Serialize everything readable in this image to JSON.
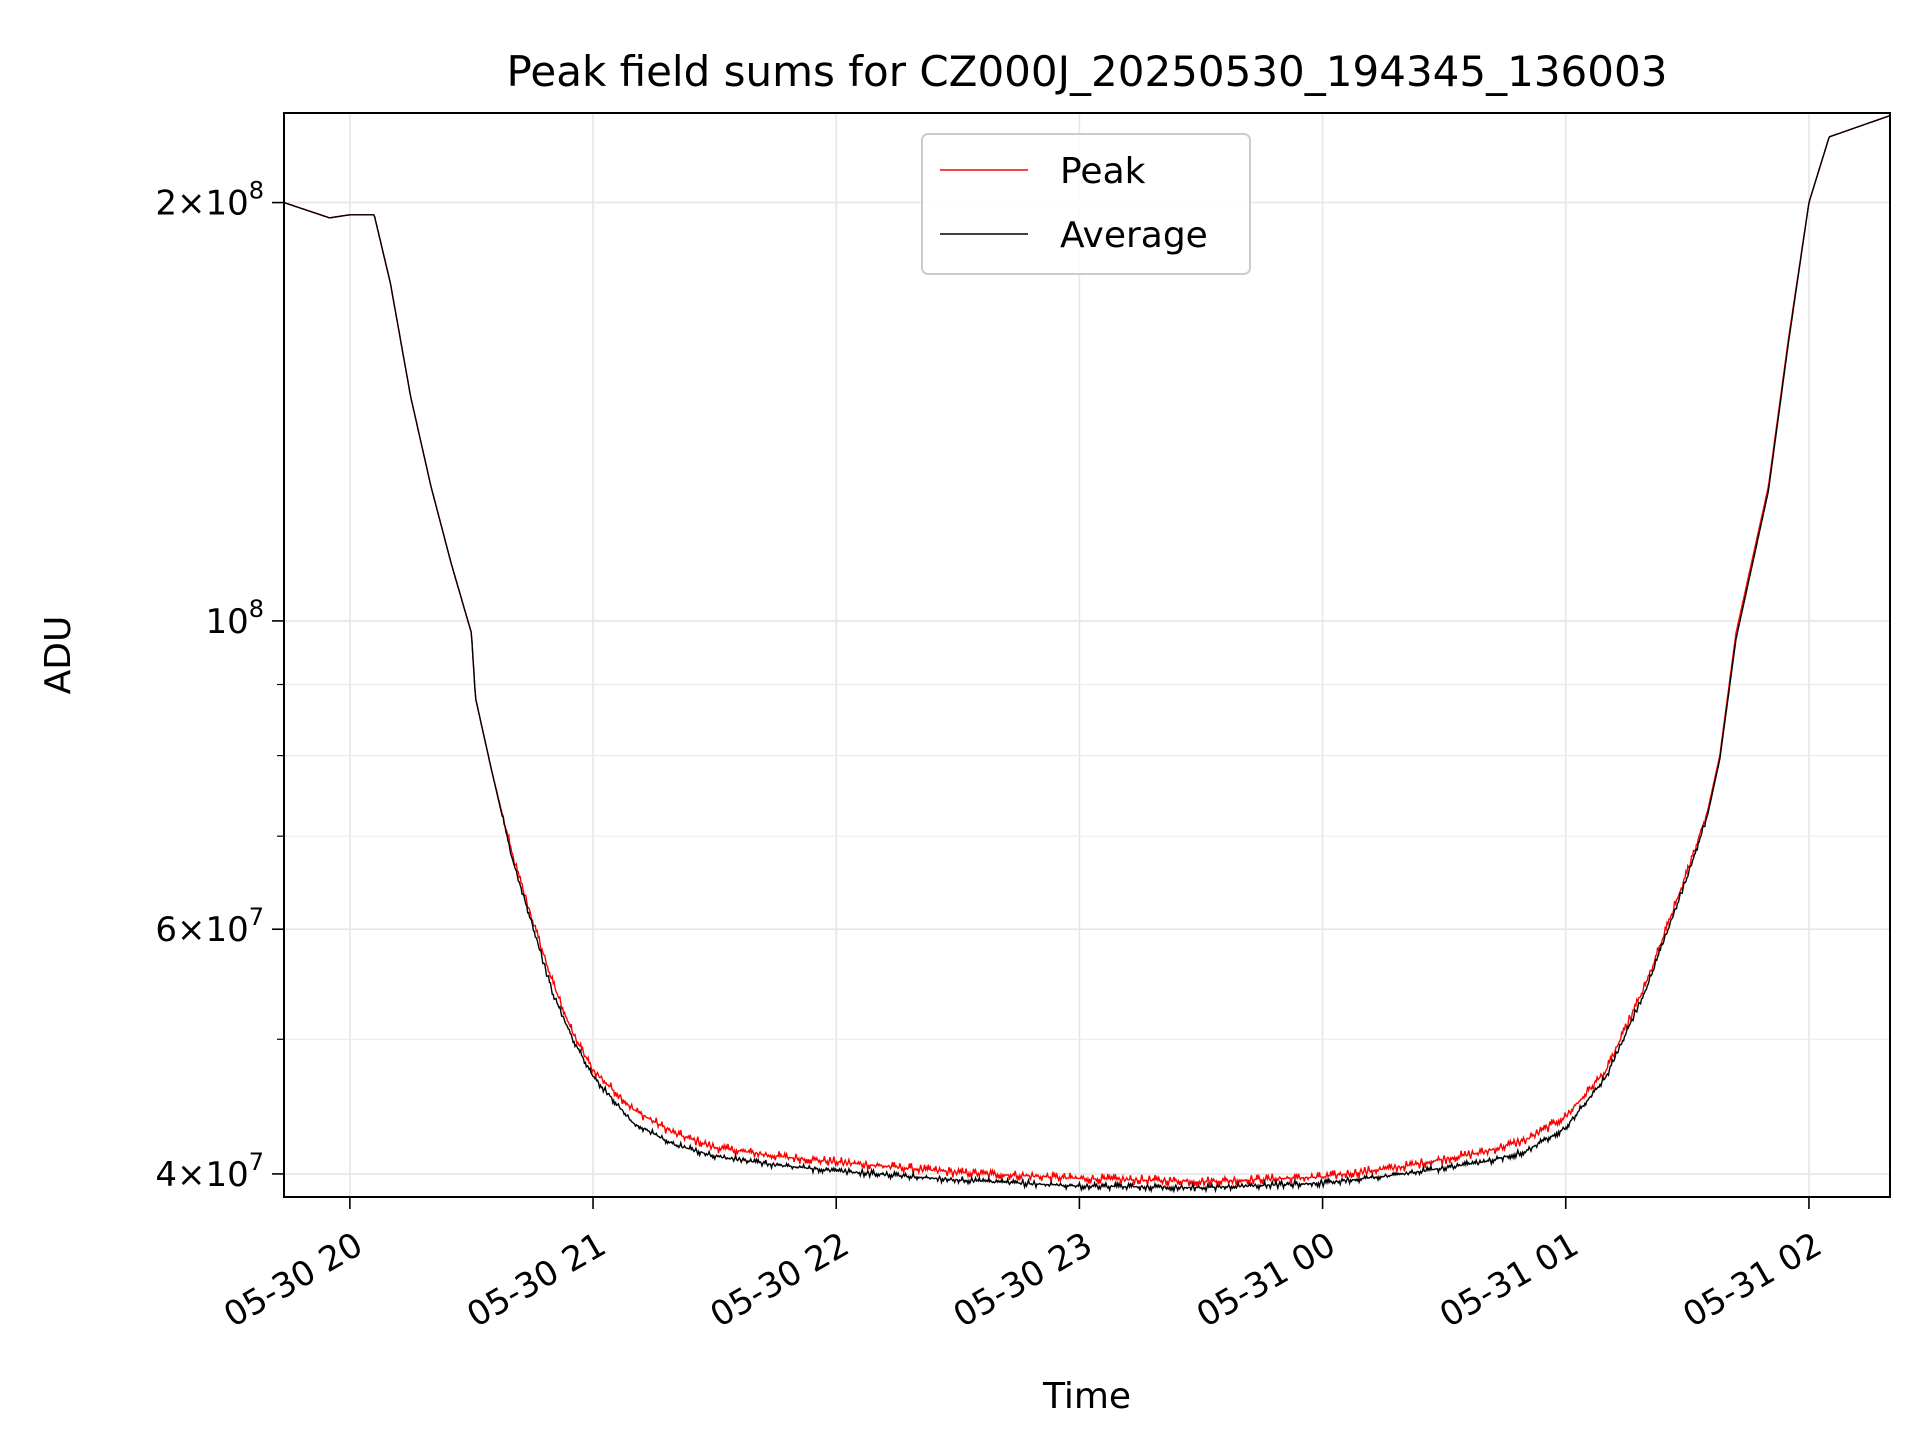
{
  "chart_data": {
    "type": "line",
    "title": "Peak field sums for CZ000J_20250530_194345_136003",
    "xlabel": "Time",
    "ylabel": "ADU",
    "yscale": "log",
    "xlim": [
      "2025-05-30 19:43:45",
      "2025-05-31 02:20:00"
    ],
    "ylim": [
      38500000,
      232000000
    ],
    "grid": true,
    "legend": {
      "position": "top-center"
    },
    "x_ticks": [
      {
        "value": "2025-05-30 20:00",
        "label": "05-30 20"
      },
      {
        "value": "2025-05-30 21:00",
        "label": "05-30 21"
      },
      {
        "value": "2025-05-30 22:00",
        "label": "05-30 22"
      },
      {
        "value": "2025-05-30 23:00",
        "label": "05-30 23"
      },
      {
        "value": "2025-05-31 00:00",
        "label": "05-31 00"
      },
      {
        "value": "2025-05-31 01:00",
        "label": "05-31 01"
      },
      {
        "value": "2025-05-31 02:00",
        "label": "05-31 02"
      }
    ],
    "y_ticks_major": [
      {
        "value": 40000000,
        "mantissa": "4",
        "exp": "7"
      },
      {
        "value": 60000000,
        "mantissa": "6",
        "exp": "7"
      },
      {
        "value": 100000000,
        "mantissa": "",
        "exp": "8"
      },
      {
        "value": 200000000,
        "mantissa": "2",
        "exp": "8"
      }
    ],
    "y_ticks_minor": [
      50000000,
      70000000,
      80000000,
      90000000
    ],
    "series": [
      {
        "name": "Peak",
        "color": "#ff0000",
        "x": [
          "2025-05-30 19:43:45",
          "2025-05-30 19:55",
          "2025-05-30 20:00",
          "2025-05-30 20:06",
          "2025-05-30 20:10",
          "2025-05-30 20:15",
          "2025-05-30 20:20",
          "2025-05-30 20:25",
          "2025-05-30 20:30",
          "2025-05-30 20:31",
          "2025-05-30 20:35",
          "2025-05-30 20:40",
          "2025-05-30 20:45",
          "2025-05-30 20:50",
          "2025-05-30 20:55",
          "2025-05-30 21:00",
          "2025-05-30 21:10",
          "2025-05-30 21:20",
          "2025-05-30 21:30",
          "2025-05-30 21:45",
          "2025-05-30 22:00",
          "2025-05-30 22:30",
          "2025-05-30 23:00",
          "2025-05-30 23:30",
          "2025-05-31 00:00",
          "2025-05-31 00:20",
          "2025-05-31 00:40",
          "2025-05-31 00:50",
          "2025-05-31 01:00",
          "2025-05-31 01:10",
          "2025-05-31 01:20",
          "2025-05-31 01:30",
          "2025-05-31 01:35",
          "2025-05-31 01:38",
          "2025-05-31 01:42",
          "2025-05-31 01:50",
          "2025-05-31 01:55",
          "2025-05-31 02:00",
          "2025-05-31 02:05",
          "2025-05-31 02:20"
        ],
        "y": [
          200000000,
          195000000,
          196000000,
          196000000,
          175000000,
          145000000,
          125000000,
          110000000,
          98000000,
          88000000,
          78000000,
          68000000,
          61000000,
          55000000,
          50500000,
          47500000,
          44500000,
          42800000,
          41800000,
          41200000,
          40800000,
          40100000,
          39700000,
          39500000,
          39800000,
          40500000,
          41500000,
          42300000,
          44000000,
          47500000,
          55000000,
          66000000,
          73000000,
          80000000,
          98000000,
          125000000,
          160000000,
          200000000,
          223000000,
          231000000
        ],
        "noise": 0.018
      },
      {
        "name": "Average",
        "color": "#000000",
        "x": [
          "2025-05-30 19:43:45",
          "2025-05-30 19:55",
          "2025-05-30 20:00",
          "2025-05-30 20:06",
          "2025-05-30 20:10",
          "2025-05-30 20:15",
          "2025-05-30 20:20",
          "2025-05-30 20:25",
          "2025-05-30 20:30",
          "2025-05-30 20:31",
          "2025-05-30 20:35",
          "2025-05-30 20:40",
          "2025-05-30 20:45",
          "2025-05-30 20:50",
          "2025-05-30 20:55",
          "2025-05-30 21:00",
          "2025-05-30 21:10",
          "2025-05-30 21:20",
          "2025-05-30 21:30",
          "2025-05-30 21:45",
          "2025-05-30 22:00",
          "2025-05-30 22:30",
          "2025-05-30 23:00",
          "2025-05-30 23:30",
          "2025-05-31 00:00",
          "2025-05-31 00:20",
          "2025-05-31 00:40",
          "2025-05-31 00:50",
          "2025-05-31 01:00",
          "2025-05-31 01:10",
          "2025-05-31 01:20",
          "2025-05-31 01:30",
          "2025-05-31 01:35",
          "2025-05-31 01:38",
          "2025-05-31 01:42",
          "2025-05-31 01:50",
          "2025-05-31 01:55",
          "2025-05-31 02:00",
          "2025-05-31 02:05",
          "2025-05-31 02:20"
        ],
        "y": [
          200000000,
          195000000,
          196000000,
          196000000,
          175000000,
          145000000,
          125000000,
          110000000,
          98000000,
          88000000,
          78000000,
          67500000,
          60500000,
          54000000,
          50000000,
          47000000,
          43500000,
          42000000,
          41200000,
          40600000,
          40200000,
          39600000,
          39200000,
          39100000,
          39400000,
          40000000,
          40800000,
          41500000,
          43200000,
          47000000,
          54500000,
          65500000,
          72500000,
          79500000,
          97000000,
          124000000,
          159000000,
          200000000,
          223000000,
          231000000
        ],
        "noise": 0.01
      }
    ]
  }
}
